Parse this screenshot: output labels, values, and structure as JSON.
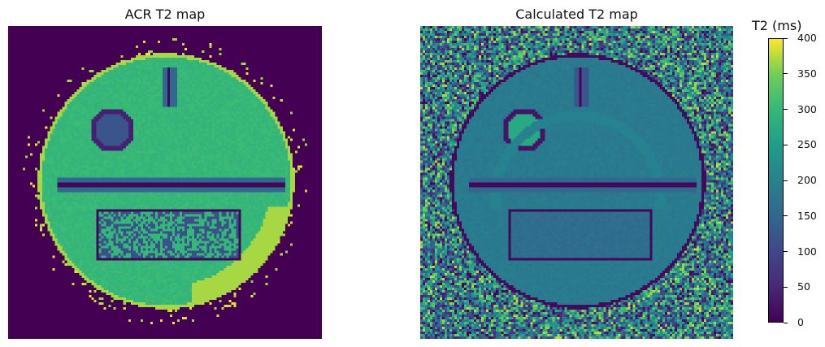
{
  "chart_data": [
    {
      "type": "heatmap",
      "title": "ACR T2 map",
      "colormap": "viridis",
      "vmin": 0,
      "vmax": 400,
      "background_value": 0,
      "phantom_body_value": 300,
      "rim_value": 370,
      "axes_visible": false
    },
    {
      "type": "heatmap",
      "title": "Calculated T2 map",
      "colormap": "viridis",
      "vmin": 0,
      "vmax": 400,
      "background_noise_range": [
        0,
        400
      ],
      "phantom_body_value": 185,
      "inner_circle_value": 270,
      "ring_value": 200,
      "axes_visible": false
    }
  ],
  "colorbar": {
    "label": "T2 (ms)",
    "ticks": [
      "0",
      "50",
      "100",
      "150",
      "200",
      "250",
      "300",
      "350",
      "400"
    ],
    "tick_values": [
      0,
      50,
      100,
      150,
      200,
      250,
      300,
      350,
      400
    ],
    "range": [
      0,
      400
    ],
    "colors": [
      "#440154",
      "#482878",
      "#3e4989",
      "#31688e",
      "#26828e",
      "#1f9e89",
      "#35b779",
      "#6ece58",
      "#fde725"
    ]
  }
}
